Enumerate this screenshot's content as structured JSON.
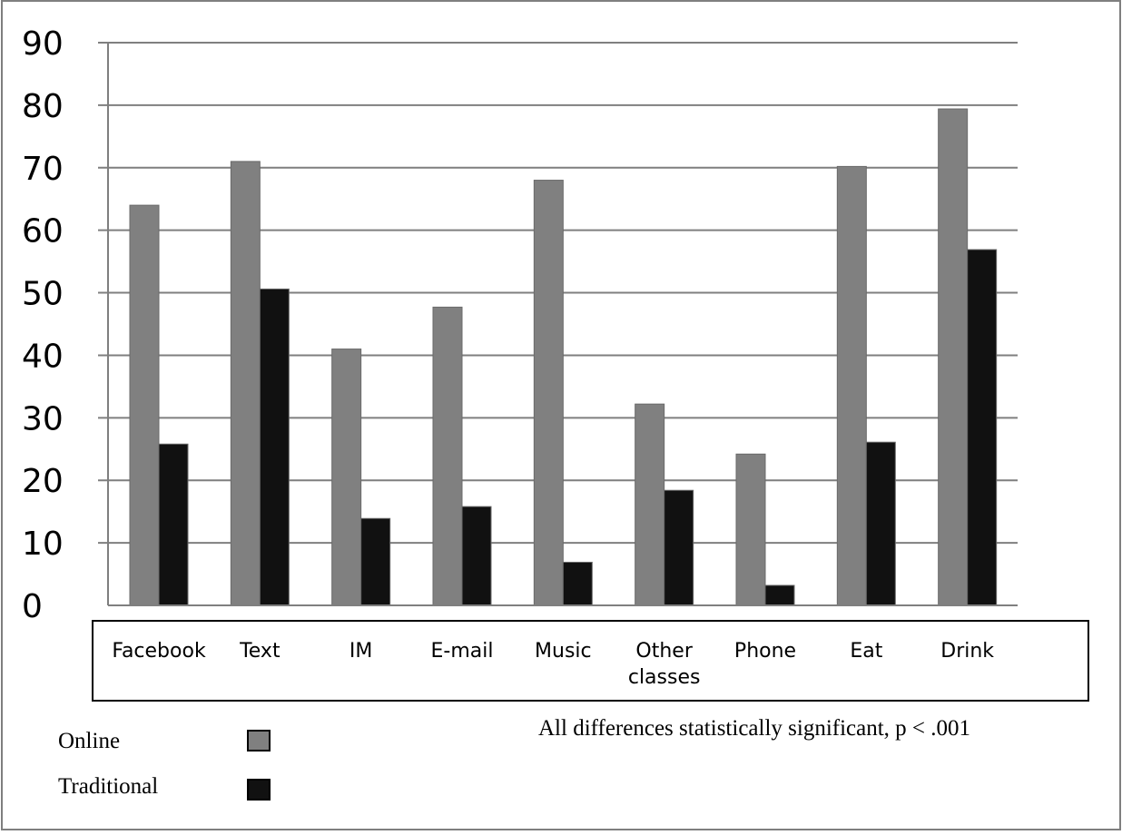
{
  "chart_data": {
    "type": "bar",
    "categories": [
      [
        "Facebook"
      ],
      [
        "Text"
      ],
      [
        "IM"
      ],
      [
        "E-mail"
      ],
      [
        "Music"
      ],
      [
        "Other",
        "classes"
      ],
      [
        "Phone"
      ],
      [
        "Eat"
      ],
      [
        "Drink"
      ]
    ],
    "series": [
      {
        "name": "Online",
        "color": "#808080",
        "values": [
          64,
          71,
          41,
          47.7,
          68,
          32.2,
          24.2,
          70.2,
          79.4
        ]
      },
      {
        "name": "Traditional",
        "color": "#111111",
        "values": [
          25.8,
          50.6,
          13.9,
          15.8,
          6.9,
          18.4,
          3.2,
          26.1,
          56.9
        ]
      }
    ],
    "ylim": [
      0,
      90
    ],
    "yticks": [
      "0",
      "10",
      "20",
      "30",
      "40",
      "50",
      "60",
      "70",
      "80",
      "90"
    ],
    "grid": true,
    "legend_position": "bottom-left",
    "annotation": "All differences statistically significant, p < .001"
  }
}
